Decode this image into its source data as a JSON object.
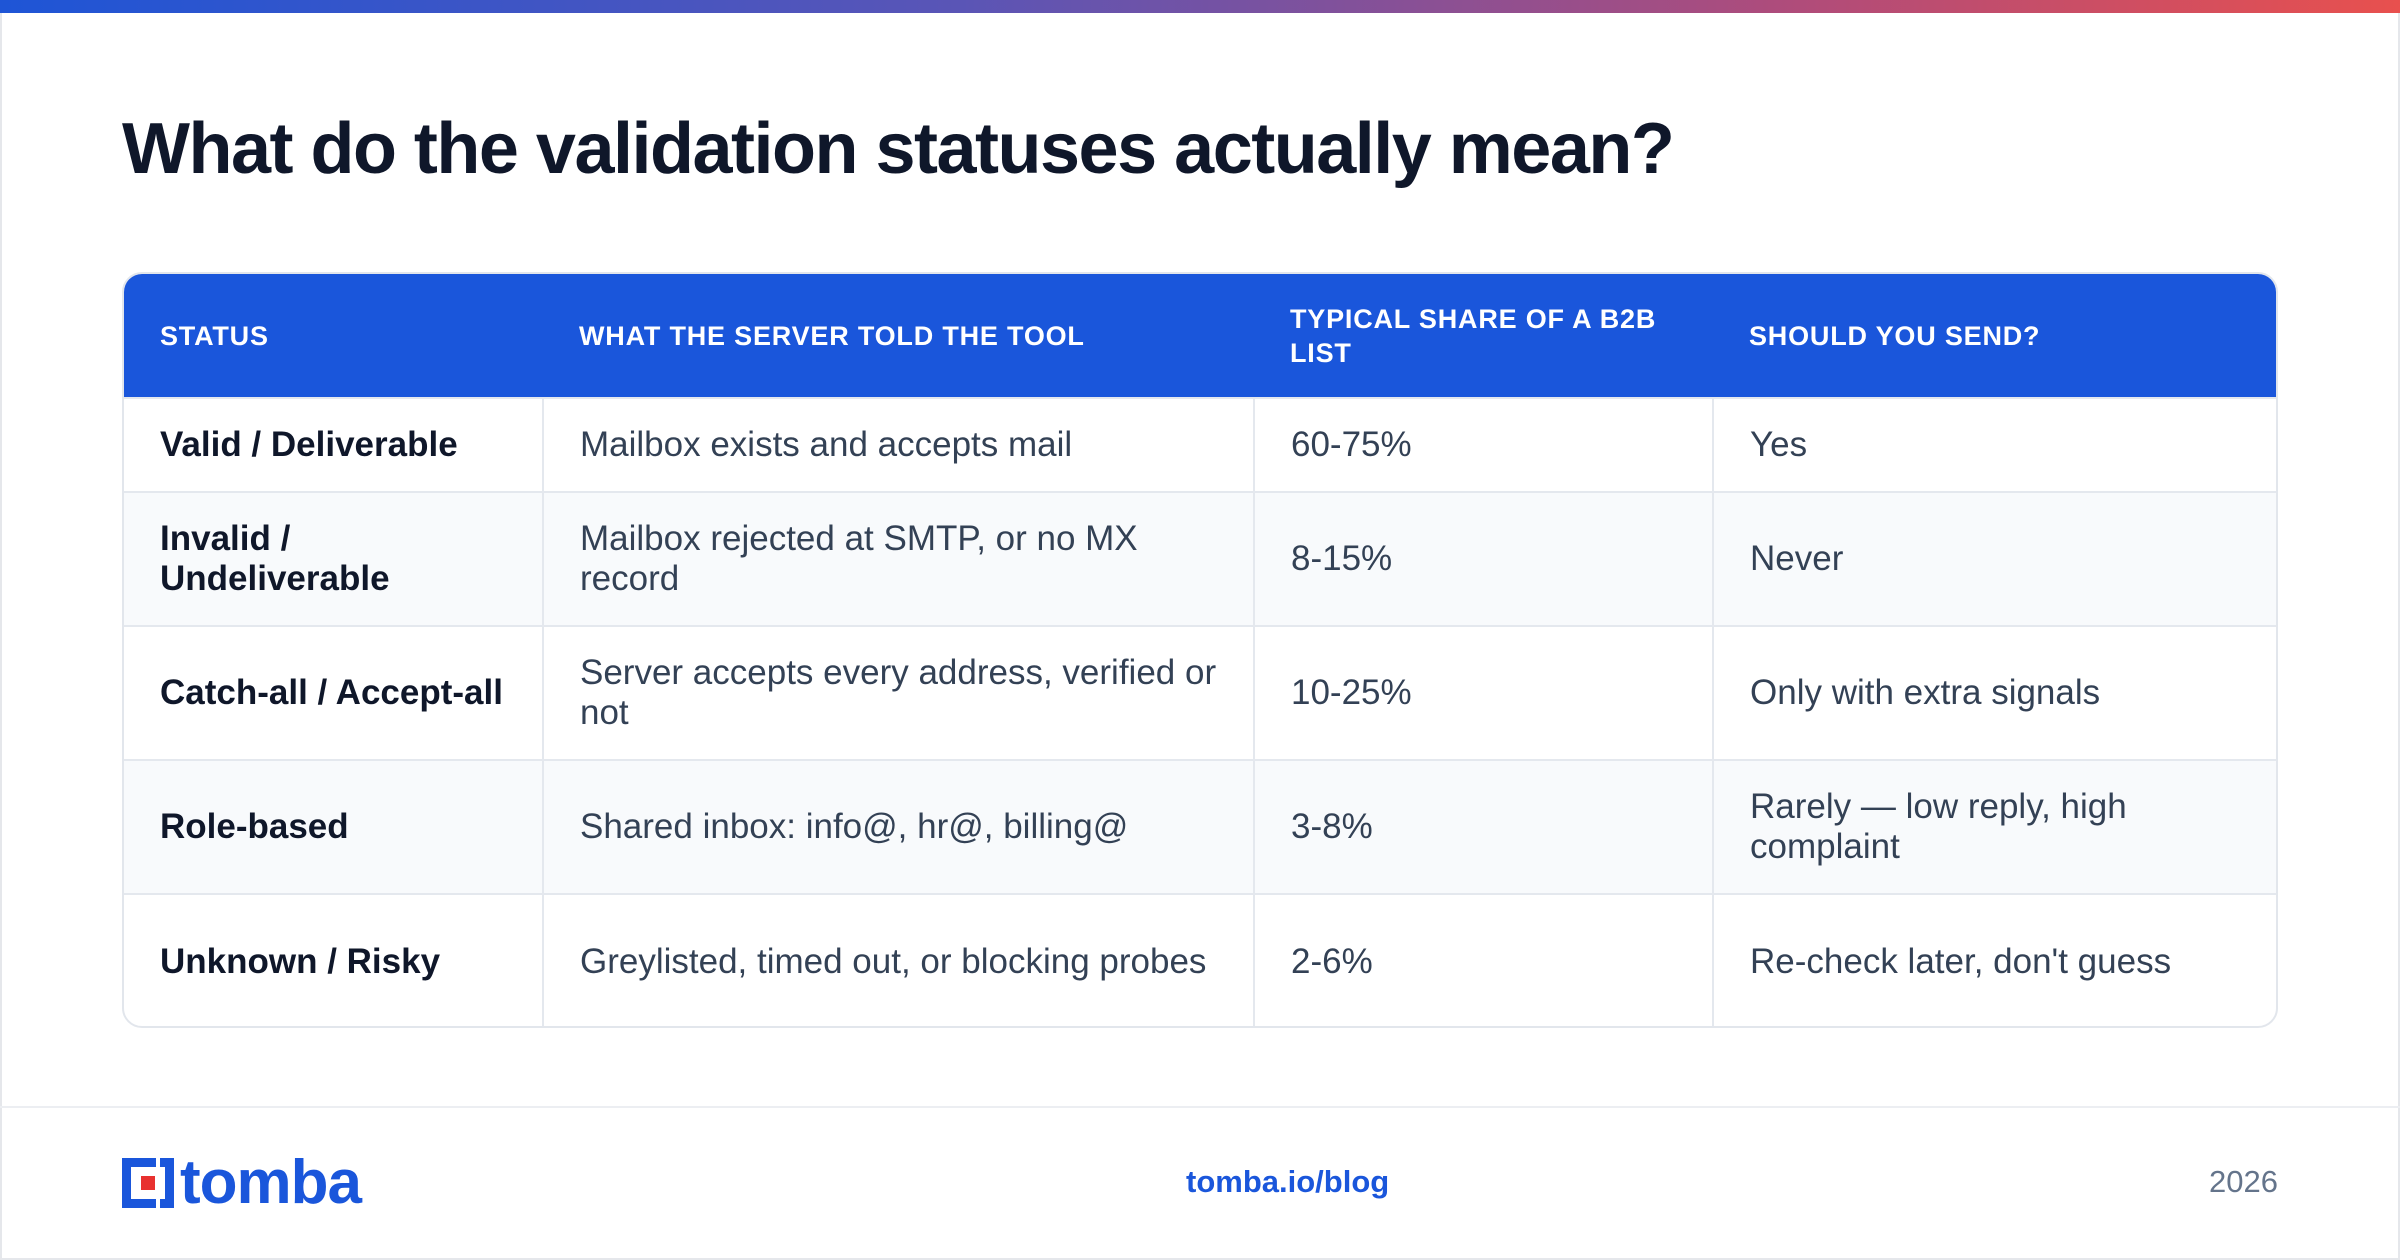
{
  "accent_colors": {
    "brand_blue": "#1a56db",
    "gradient_start": "#1e55d6",
    "gradient_end": "#e8504e"
  },
  "title": "What do the validation statuses actually mean?",
  "table": {
    "headers": [
      "STATUS",
      "WHAT THE SERVER TOLD THE TOOL",
      "TYPICAL SHARE OF A B2B LIST",
      "SHOULD YOU SEND?"
    ],
    "rows": [
      [
        "Valid / Deliverable",
        "Mailbox exists and accepts mail",
        "60-75%",
        "Yes"
      ],
      [
        "Invalid / Undeliverable",
        "Mailbox rejected at SMTP, or no MX record",
        "8-15%",
        "Never"
      ],
      [
        "Catch-all / Accept-all",
        "Server accepts every address, verified or not",
        "10-25%",
        "Only with extra signals"
      ],
      [
        "Role-based",
        "Shared inbox: info@, hr@, billing@",
        "3-8%",
        "Rarely — low reply, high complaint"
      ],
      [
        "Unknown / Risky",
        "Greylisted, timed out, or blocking probes",
        "2-6%",
        "Re-check later, don't guess"
      ]
    ]
  },
  "footer": {
    "logo_text": "tomba",
    "url": "tomba.io/blog",
    "year": "2026"
  }
}
